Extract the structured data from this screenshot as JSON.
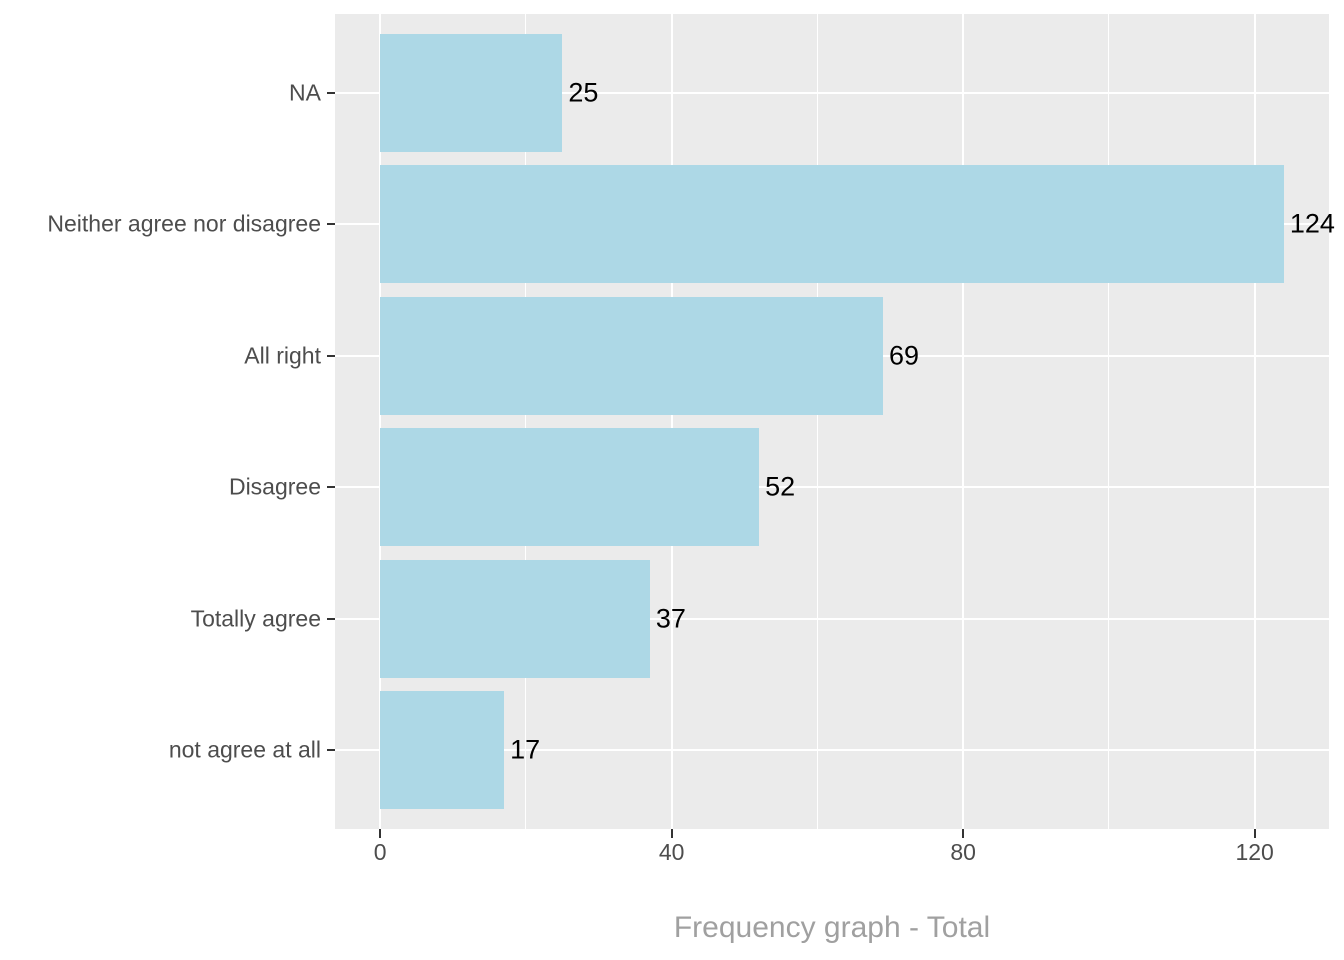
{
  "chart_data": {
    "type": "bar",
    "orientation": "horizontal",
    "title": "Frequency graph - Total",
    "title_position": "bottom-center",
    "categories": [
      "NA",
      "Neither agree nor disagree",
      "All right",
      "Disagree",
      "Totally agree",
      "not agree at all"
    ],
    "values": [
      25,
      124,
      69,
      52,
      37,
      17
    ],
    "value_labels": [
      "25",
      "124",
      "69",
      "52",
      "37",
      "17"
    ],
    "xlabel": "",
    "ylabel": "",
    "x_ticks": [
      0,
      40,
      80,
      120
    ],
    "x_tick_labels": [
      "0",
      "40",
      "80",
      "120"
    ],
    "x_minor_gridlines": [
      20,
      60,
      100
    ],
    "xlim": [
      -6.2,
      130.2
    ],
    "grid": "on",
    "legend_position": "none",
    "colors": {
      "bar_fill": "#ADD8E6",
      "panel_background": "#EBEBEB",
      "gridline": "#FFFFFF",
      "tick_mark": "#333333",
      "axis_text": "#4D4D4D",
      "value_label_text": "#000000",
      "title_text": "#A0A0A0",
      "figure_background": "#FFFFFF"
    }
  }
}
